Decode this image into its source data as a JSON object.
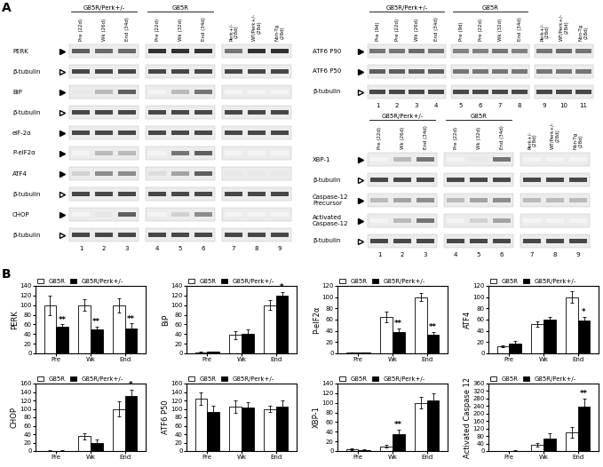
{
  "panel_a": {
    "label": "A",
    "blots": [
      {
        "groups": [
          {
            "name": "G85R/Perk+/-",
            "lanes": [
              "Pre (22d)",
              "Wk (26d)",
              "End (34d)"
            ]
          },
          {
            "name": "G85R",
            "lanes": [
              "Pre (22d)",
              "Wk (32d)",
              "End (34d)"
            ]
          },
          {
            "name": null,
            "lanes": [
              "Perk+/- (28d)",
              "WT/Perk+/- (28d)",
              "Non-Tg (28d)"
            ]
          }
        ],
        "lane_numbers": [
          1,
          2,
          3,
          4,
          5,
          6,
          7,
          8,
          9
        ],
        "rows": [
          {
            "name": "PERK",
            "control": false,
            "intensity": [
              0.7,
              0.65,
              0.65,
              0.9,
              0.9,
              0.9,
              0.6,
              0.9,
              0.9
            ]
          },
          {
            "name": "β-tubulin",
            "control": true,
            "intensity": [
              0.8,
              0.8,
              0.8,
              0.8,
              0.8,
              0.8,
              0.8,
              0.8,
              0.8
            ]
          },
          {
            "name": "BiP",
            "control": false,
            "intensity": [
              0.1,
              0.3,
              0.7,
              0.05,
              0.3,
              0.6,
              0.05,
              0.05,
              0.05
            ]
          },
          {
            "name": "β-tubulin",
            "control": true,
            "intensity": [
              0.8,
              0.8,
              0.8,
              0.8,
              0.8,
              0.8,
              0.8,
              0.8,
              0.8
            ]
          },
          {
            "name": "eIF-2α",
            "control": false,
            "intensity": [
              0.8,
              0.8,
              0.8,
              0.8,
              0.8,
              0.8,
              0.8,
              0.8,
              0.8
            ]
          },
          {
            "name": "P-eIF2α",
            "control": false,
            "intensity": [
              0.05,
              0.3,
              0.3,
              0.05,
              0.6,
              0.7,
              0.05,
              0.05,
              0.05
            ]
          },
          {
            "name": "ATF4",
            "control": false,
            "intensity": [
              0.2,
              0.5,
              0.5,
              0.15,
              0.4,
              0.7,
              0.1,
              0.1,
              0.1
            ]
          },
          {
            "name": "β-tubulin",
            "control": true,
            "intensity": [
              0.8,
              0.8,
              0.8,
              0.8,
              0.8,
              0.8,
              0.8,
              0.8,
              0.8
            ]
          },
          {
            "name": "CHOP",
            "control": false,
            "intensity": [
              0.05,
              0.1,
              0.7,
              0.05,
              0.2,
              0.5,
              0.05,
              0.05,
              0.05
            ]
          },
          {
            "name": "β-tubulin",
            "control": true,
            "intensity": [
              0.8,
              0.8,
              0.8,
              0.8,
              0.8,
              0.8,
              0.8,
              0.8,
              0.8
            ]
          }
        ]
      },
      {
        "groups": [
          {
            "name": "G85R/Perk+/-",
            "lanes": [
              "Pre (9d)",
              "Pre (22d)",
              "Wk (26d)",
              "End (34d)"
            ]
          },
          {
            "name": "G85R",
            "lanes": [
              "Pre (9d)",
              "Pre (22d)",
              "Wk (32d)",
              "End (34d)"
            ]
          },
          {
            "name": null,
            "lanes": [
              "Perk+/- (28d)",
              "WT/Perk+/- (28d)",
              "Non-Tg (28d)"
            ]
          }
        ],
        "lane_numbers": [
          1,
          2,
          3,
          4,
          5,
          6,
          7,
          8,
          9,
          10,
          11
        ],
        "rows": [
          {
            "name": "ATF6 P90",
            "control": false,
            "intensity": [
              0.6,
              0.6,
              0.65,
              0.6,
              0.55,
              0.55,
              0.6,
              0.55,
              0.6,
              0.65,
              0.6
            ]
          },
          {
            "name": "ATF6 P50",
            "control": false,
            "intensity": [
              0.7,
              0.7,
              0.7,
              0.7,
              0.6,
              0.6,
              0.6,
              0.6,
              0.6,
              0.6,
              0.6
            ]
          },
          {
            "name": "β-tubulin",
            "control": true,
            "intensity": [
              0.8,
              0.8,
              0.8,
              0.8,
              0.8,
              0.8,
              0.8,
              0.8,
              0.8,
              0.8,
              0.8
            ]
          }
        ]
      },
      {
        "groups": [
          {
            "name": "G85R/Perk+/-",
            "lanes": [
              "Pre (22d)",
              "Wk (26d)",
              "End (34d)"
            ]
          },
          {
            "name": "G85R",
            "lanes": [
              "Pre (22d)",
              "Wk (32d)",
              "End (34d)"
            ]
          },
          {
            "name": null,
            "lanes": [
              "Perk+/- (28d)",
              "WT/Perk+/- (28d)",
              "Non-Tg (28d)"
            ]
          }
        ],
        "lane_numbers": [
          1,
          2,
          3,
          4,
          5,
          6,
          7,
          8,
          9
        ],
        "rows": [
          {
            "name": "XBP-1",
            "control": false,
            "intensity": [
              0.05,
              0.3,
              0.6,
              0.05,
              0.1,
              0.6,
              0.05,
              0.05,
              0.05
            ]
          },
          {
            "name": "β-tubulin",
            "control": true,
            "intensity": [
              0.8,
              0.8,
              0.8,
              0.8,
              0.8,
              0.8,
              0.8,
              0.8,
              0.8
            ]
          },
          {
            "name": "Caspase-12 Precursor",
            "control": false,
            "intensity": [
              0.3,
              0.4,
              0.5,
              0.3,
              0.4,
              0.5,
              0.3,
              0.3,
              0.3
            ]
          },
          {
            "name": "Activated Caspase-12",
            "control": false,
            "intensity": [
              0.05,
              0.3,
              0.6,
              0.05,
              0.2,
              0.4,
              0.05,
              0.05,
              0.05
            ]
          },
          {
            "name": "β-tubulin",
            "control": true,
            "intensity": [
              0.8,
              0.8,
              0.8,
              0.8,
              0.8,
              0.8,
              0.8,
              0.8,
              0.8
            ]
          }
        ]
      }
    ]
  },
  "panel_b": {
    "label": "B"
  },
  "chart_data": [
    {
      "type": "bar",
      "y_label": "PERK",
      "categories": [
        "Pre",
        "Wk",
        "End"
      ],
      "series": [
        {
          "name": "G85R",
          "color": "#ffffff",
          "values": [
            100,
            100,
            100
          ],
          "errors": [
            20,
            12,
            15
          ],
          "significance": [
            null,
            null,
            null
          ]
        },
        {
          "name": "G85R/Perk+/-",
          "color": "#000000",
          "values": [
            55,
            50,
            52
          ],
          "errors": [
            5,
            5,
            10
          ],
          "significance": [
            "**",
            "**",
            "**"
          ]
        }
      ],
      "ylim": [
        0,
        140
      ],
      "yticks": [
        0,
        20,
        40,
        60,
        80,
        100,
        120,
        140
      ],
      "legend": "top"
    },
    {
      "type": "bar",
      "y_label": "BiP",
      "categories": [
        "Pre",
        "Wk",
        "End"
      ],
      "series": [
        {
          "name": "G85R",
          "color": "#ffffff",
          "values": [
            2,
            38,
            100
          ],
          "errors": [
            1,
            8,
            10
          ],
          "significance": [
            null,
            null,
            null
          ]
        },
        {
          "name": "G85R/Perk+/-",
          "color": "#000000",
          "values": [
            3,
            40,
            120
          ],
          "errors": [
            1,
            10,
            8
          ],
          "significance": [
            null,
            null,
            "*"
          ]
        }
      ],
      "ylim": [
        0,
        140
      ],
      "yticks": [
        0,
        20,
        40,
        60,
        80,
        100,
        120,
        140
      ],
      "legend": "top"
    },
    {
      "type": "bar",
      "y_label": "P-eIF2α",
      "categories": [
        "Pre",
        "Wk",
        "End"
      ],
      "series": [
        {
          "name": "G85R",
          "color": "#ffffff",
          "values": [
            1,
            65,
            100
          ],
          "errors": [
            1,
            10,
            7
          ],
          "significance": [
            null,
            null,
            null
          ]
        },
        {
          "name": "G85R/Perk+/-",
          "color": "#000000",
          "values": [
            1,
            38,
            33
          ],
          "errors": [
            1,
            6,
            5
          ],
          "significance": [
            null,
            "**",
            "**"
          ]
        }
      ],
      "ylim": [
        0,
        120
      ],
      "yticks": [
        0,
        20,
        40,
        60,
        80,
        100,
        120
      ],
      "legend": "top"
    },
    {
      "type": "bar",
      "y_label": "ATF4",
      "categories": [
        "Pre",
        "Wk",
        "End"
      ],
      "series": [
        {
          "name": "G85R",
          "color": "#ffffff",
          "values": [
            13,
            52,
            100
          ],
          "errors": [
            2,
            5,
            10
          ],
          "significance": [
            null,
            null,
            null
          ]
        },
        {
          "name": "G85R/Perk+/-",
          "color": "#000000",
          "values": [
            18,
            60,
            59
          ],
          "errors": [
            4,
            5,
            6
          ],
          "significance": [
            null,
            null,
            "*"
          ]
        }
      ],
      "ylim": [
        0,
        120
      ],
      "yticks": [
        0,
        20,
        40,
        60,
        80,
        100,
        120
      ],
      "legend": "top"
    },
    {
      "type": "bar",
      "y_label": "CHOP",
      "categories": [
        "Pre",
        "Wk",
        "End"
      ],
      "series": [
        {
          "name": "G85R",
          "color": "#ffffff",
          "values": [
            1,
            35,
            100
          ],
          "errors": [
            1,
            8,
            18
          ],
          "significance": [
            null,
            null,
            null
          ]
        },
        {
          "name": "G85R/Perk+/-",
          "color": "#000000",
          "values": [
            1,
            20,
            130
          ],
          "errors": [
            1,
            8,
            15
          ],
          "significance": [
            null,
            null,
            "*"
          ]
        }
      ],
      "ylim": [
        0,
        160
      ],
      "yticks": [
        0,
        20,
        40,
        60,
        80,
        100,
        120,
        140,
        160
      ],
      "legend": "top"
    },
    {
      "type": "bar",
      "y_label": "ATF6 P50",
      "categories": [
        "Pre",
        "Wk",
        "End"
      ],
      "series": [
        {
          "name": "G85R",
          "color": "#ffffff",
          "values": [
            125,
            105,
            100
          ],
          "errors": [
            15,
            15,
            8
          ],
          "significance": [
            null,
            null,
            null
          ]
        },
        {
          "name": "G85R/Perk+/-",
          "color": "#000000",
          "values": [
            93,
            103,
            105
          ],
          "errors": [
            15,
            12,
            15
          ],
          "significance": [
            null,
            null,
            null
          ]
        }
      ],
      "ylim": [
        0,
        160
      ],
      "yticks": [
        0,
        20,
        40,
        60,
        80,
        100,
        120,
        140,
        160
      ],
      "legend": "top"
    },
    {
      "type": "bar",
      "y_label": "XBP-1",
      "categories": [
        "Pre",
        "Wk",
        "End"
      ],
      "series": [
        {
          "name": "G85R",
          "color": "#ffffff",
          "values": [
            3,
            10,
            100
          ],
          "errors": [
            2,
            2,
            12
          ],
          "significance": [
            null,
            null,
            null
          ]
        },
        {
          "name": "G85R/Perk+/-",
          "color": "#000000",
          "values": [
            2,
            35,
            105
          ],
          "errors": [
            1,
            10,
            15
          ],
          "significance": [
            null,
            "**",
            null
          ]
        }
      ],
      "ylim": [
        0,
        140
      ],
      "yticks": [
        0,
        20,
        40,
        60,
        80,
        100,
        120,
        140
      ],
      "legend": "top"
    },
    {
      "type": "bar",
      "y_label": "Activated Caspase 12",
      "categories": [
        "Pre",
        "Wk",
        "End"
      ],
      "series": [
        {
          "name": "G85R",
          "color": "#ffffff",
          "values": [
            1,
            35,
            100
          ],
          "errors": [
            1,
            10,
            30
          ],
          "significance": [
            null,
            null,
            null
          ]
        },
        {
          "name": "G85R/Perk+/-",
          "color": "#000000",
          "values": [
            2,
            65,
            235
          ],
          "errors": [
            1,
            30,
            45
          ],
          "significance": [
            null,
            null,
            "**"
          ]
        }
      ],
      "ylim": [
        0,
        360
      ],
      "yticks": [
        0,
        40,
        80,
        120,
        160,
        200,
        240,
        280,
        320,
        360
      ],
      "legend": "top"
    }
  ]
}
